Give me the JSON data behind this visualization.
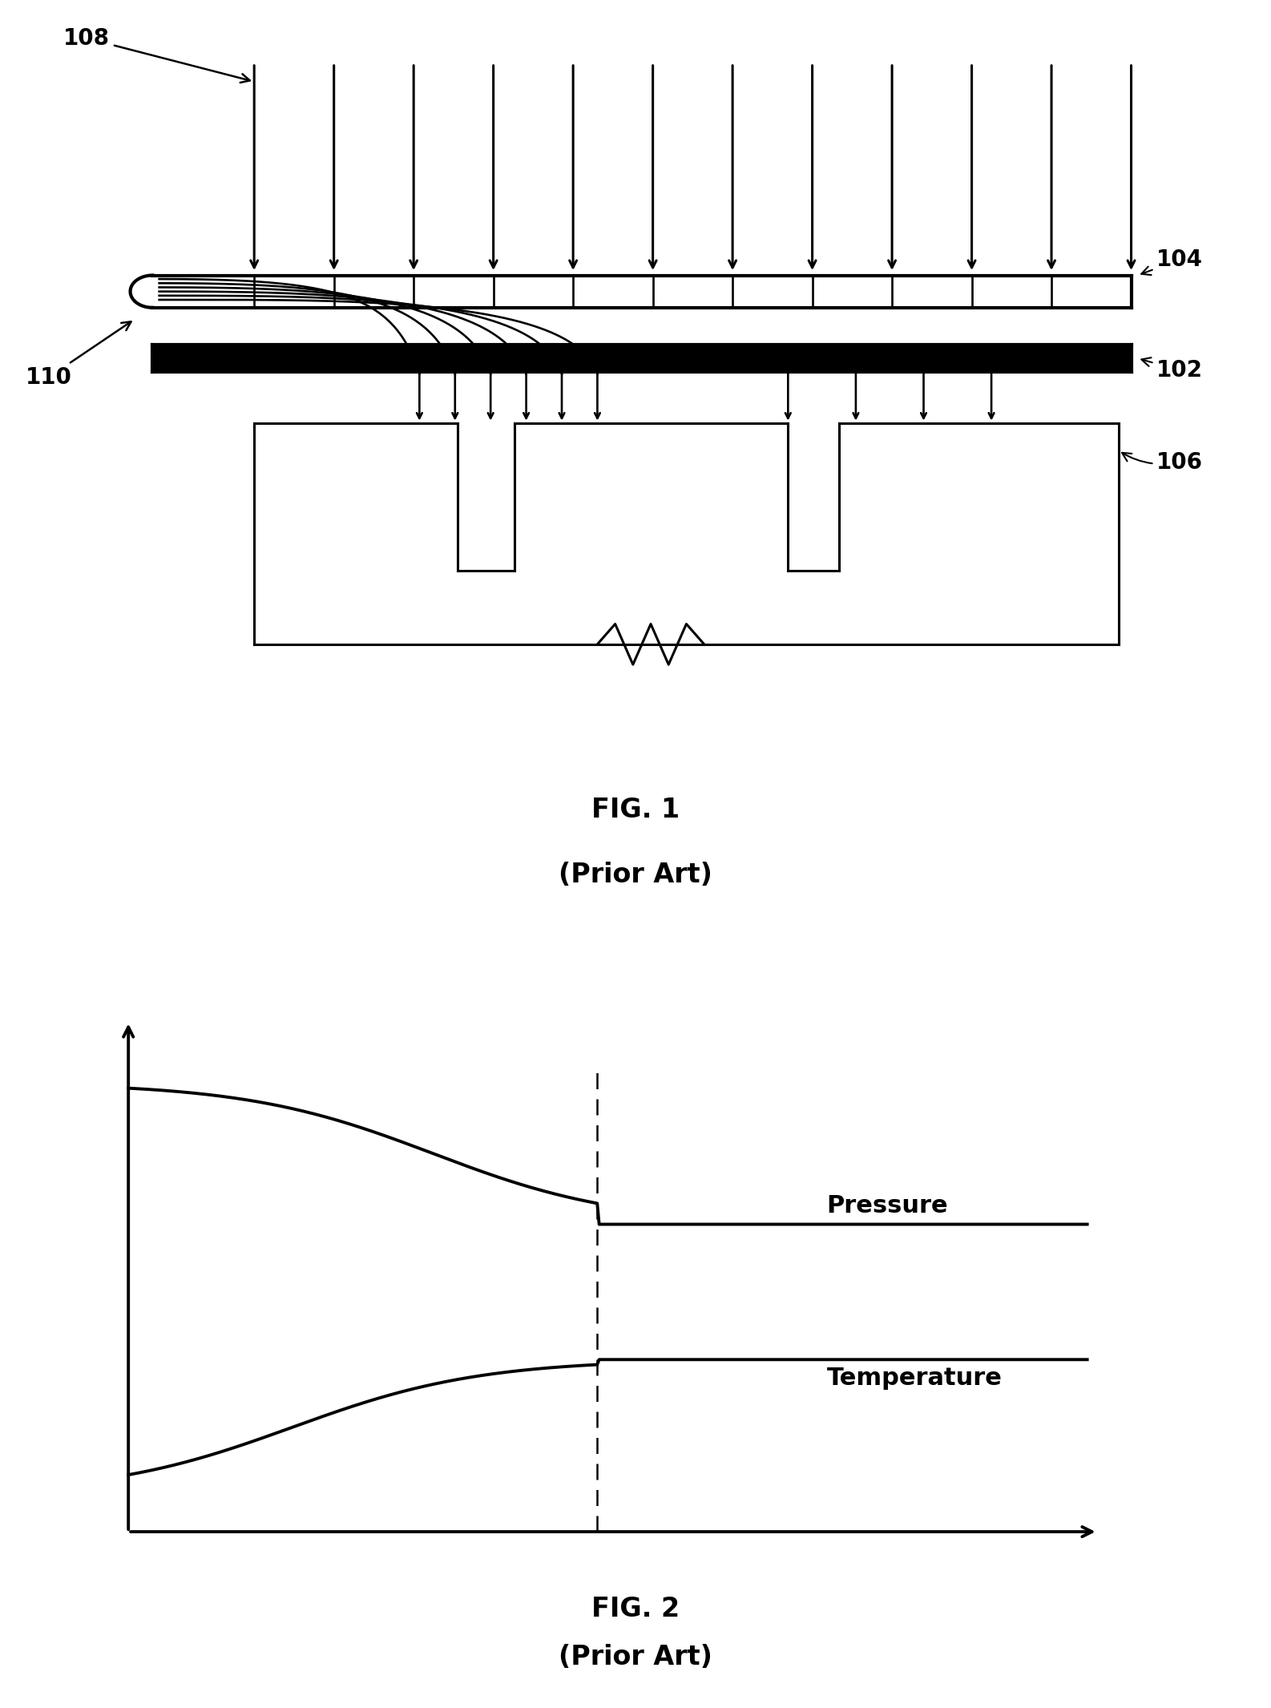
{
  "fig1_label": "FIG. 1",
  "fig1_sublabel": "(Prior Art)",
  "fig2_label": "FIG. 2",
  "fig2_sublabel": "(Prior Art)",
  "label_108": "108",
  "label_110": "110",
  "label_104": "104",
  "label_102": "102",
  "label_106": "106",
  "pressure_label": "Pressure",
  "temperature_label": "Temperature",
  "bg_color": "#ffffff",
  "line_color": "#000000",
  "label_fontsize": 22,
  "fig_label_fontsize": 24,
  "annotation_fontsize": 20
}
